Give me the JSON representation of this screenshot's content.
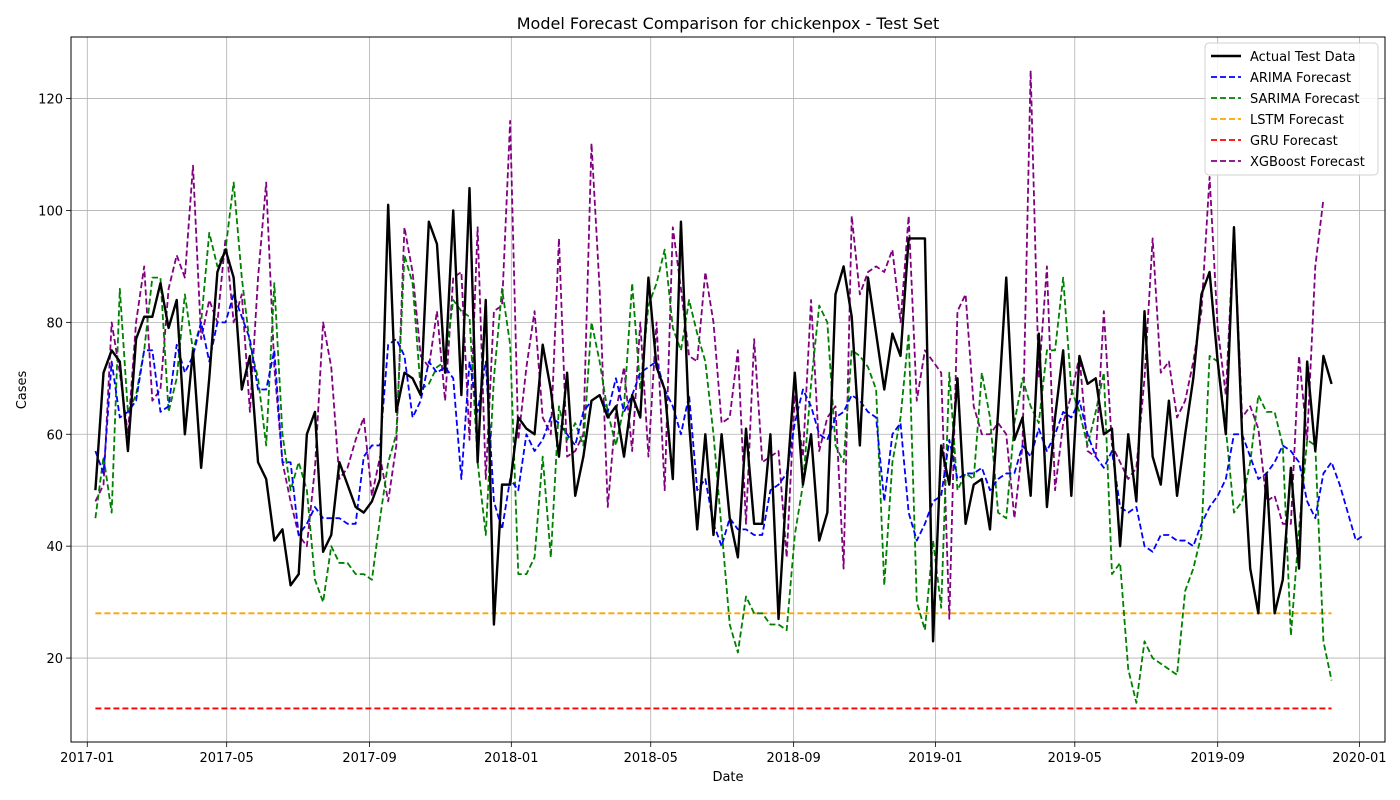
{
  "chart_data": {
    "type": "line",
    "title": "Model Forecast Comparison for chickenpox - Test Set",
    "xlabel": "Date",
    "ylabel": "Cases",
    "xlim": [
      "2016-12-18",
      "2020-01-23"
    ],
    "ylim": [
      5,
      131
    ],
    "x_ticks": [
      "2017-01",
      "2017-05",
      "2017-09",
      "2018-01",
      "2018-05",
      "2018-09",
      "2019-01",
      "2019-05",
      "2019-09",
      "2020-01"
    ],
    "y_ticks": [
      20,
      40,
      60,
      80,
      100,
      120
    ],
    "grid": true,
    "legend_position": "top-right",
    "start_date": "2017-01-08",
    "step": "weekly",
    "series": [
      {
        "name": "Actual Test Data",
        "color": "#000000",
        "dashed": false,
        "values": [
          50,
          71,
          75,
          73,
          57,
          77,
          81,
          81,
          87,
          79,
          84,
          60,
          75,
          54,
          70,
          89,
          93,
          88,
          68,
          74,
          55,
          52,
          41,
          43,
          33,
          35,
          60,
          64,
          39,
          42,
          55,
          51,
          47,
          46,
          48,
          52,
          101,
          64,
          71,
          70,
          67,
          98,
          94,
          71,
          100,
          67,
          104,
          55,
          84,
          26,
          51,
          51,
          63,
          61,
          60,
          76,
          68,
          56,
          71,
          49,
          56,
          66,
          67,
          63,
          65,
          56,
          67,
          63,
          88,
          72,
          68,
          52,
          98,
          62,
          43,
          60,
          42,
          60,
          45,
          38,
          61,
          44,
          44,
          60,
          27,
          51,
          71,
          51,
          60,
          41,
          46,
          85,
          90,
          81,
          58,
          88,
          78,
          68,
          78,
          74,
          95,
          95,
          95,
          23,
          58,
          51,
          70,
          44,
          51,
          52,
          43,
          64,
          88,
          59,
          63,
          49,
          78,
          47,
          63,
          75,
          49,
          74,
          69,
          70,
          60,
          61,
          40,
          60,
          48,
          82,
          56,
          51,
          66,
          49,
          60,
          70,
          85,
          89,
          73,
          60,
          97,
          60,
          36,
          28,
          53,
          28,
          34,
          54,
          36,
          73,
          57,
          74,
          69
        ]
      },
      {
        "name": "ARIMA Forecast",
        "color": "#0000ff",
        "dashed": true,
        "values": [
          57,
          53,
          73,
          63,
          64,
          66,
          75,
          75,
          64,
          65,
          76,
          71,
          74,
          80,
          73,
          80,
          80,
          85,
          81,
          77,
          68,
          68,
          75,
          55,
          55,
          42,
          44,
          47,
          45,
          45,
          45,
          44,
          44,
          56,
          58,
          58,
          76,
          77,
          74,
          63,
          66,
          73,
          71,
          72,
          70,
          52,
          73,
          64,
          73,
          48,
          43,
          52,
          50,
          60,
          57,
          59,
          63,
          62,
          60,
          58,
          64,
          66,
          67,
          64,
          70,
          64,
          67,
          71,
          72,
          73,
          68,
          65,
          60,
          67,
          50,
          52,
          44,
          40,
          45,
          43,
          43,
          42,
          42,
          50,
          51,
          53,
          62,
          68,
          65,
          60,
          59,
          63,
          64,
          67,
          66,
          64,
          63,
          48,
          60,
          62,
          46,
          41,
          44,
          48,
          49,
          59,
          52,
          53,
          53,
          54,
          50,
          52,
          53,
          53,
          58,
          56,
          61,
          57,
          60,
          64,
          63,
          66,
          60,
          56,
          54,
          57,
          47,
          46,
          47,
          40,
          39,
          42,
          42,
          41,
          41,
          40,
          44,
          47,
          49,
          52,
          60,
          60,
          56,
          52,
          53,
          55,
          58,
          57,
          55,
          48,
          45,
          53,
          55,
          51,
          46,
          41,
          42
        ]
      },
      {
        "name": "SARIMA Forecast",
        "color": "#008000",
        "dashed": true,
        "values": [
          45,
          56,
          46,
          86,
          64,
          67,
          75,
          88,
          88,
          64,
          70,
          85,
          75,
          80,
          96,
          90,
          93,
          105,
          88,
          76,
          70,
          58,
          87,
          60,
          50,
          55,
          50,
          34,
          30,
          40,
          37,
          37,
          35,
          35,
          34,
          45,
          55,
          60,
          92,
          87,
          68,
          69,
          72,
          73,
          84,
          82,
          81,
          55,
          42,
          70,
          86,
          76,
          35,
          35,
          38,
          56,
          38,
          65,
          59,
          62,
          58,
          80,
          73,
          64,
          58,
          65,
          87,
          68,
          83,
          87,
          93,
          79,
          75,
          84,
          78,
          73,
          60,
          43,
          26,
          21,
          31,
          28,
          28,
          26,
          26,
          25,
          42,
          51,
          69,
          83,
          80,
          58,
          55,
          75,
          74,
          72,
          68,
          33,
          55,
          63,
          78,
          30,
          25,
          41,
          29,
          71,
          50,
          53,
          52,
          71,
          63,
          46,
          45,
          62,
          70,
          65,
          62,
          75,
          75,
          88,
          68,
          64,
          58,
          64,
          71,
          35,
          37,
          18,
          12,
          23,
          20,
          19,
          18,
          17,
          32,
          36,
          42,
          74,
          73,
          61,
          46,
          48,
          55,
          67,
          64,
          64,
          58,
          24,
          43,
          59,
          58,
          23,
          16
        ]
      },
      {
        "name": "LSTM Forecast",
        "color": "#ffa500",
        "dashed": true,
        "constant": 28
      },
      {
        "name": "GRU Forecast",
        "color": "#ff0000",
        "dashed": true,
        "constant": 11
      },
      {
        "name": "XGBoost Forecast",
        "color": "#800080",
        "dashed": true,
        "values": [
          48,
          51,
          80,
          71,
          60,
          80,
          90,
          66,
          68,
          86,
          92,
          88,
          108,
          77,
          84,
          80,
          95,
          80,
          85,
          64,
          88,
          105,
          72,
          55,
          48,
          42,
          40,
          54,
          80,
          72,
          52,
          54,
          59,
          63,
          49,
          56,
          48,
          58,
          97,
          89,
          74,
          72,
          82,
          66,
          88,
          89,
          59,
          97,
          52,
          82,
          83,
          116,
          59,
          72,
          82,
          63,
          60,
          95,
          56,
          57,
          60,
          112,
          86,
          47,
          64,
          72,
          57,
          80,
          56,
          80,
          50,
          97,
          86,
          74,
          73,
          89,
          80,
          62,
          63,
          75,
          44,
          77,
          55,
          56,
          57,
          38,
          67,
          56,
          84,
          57,
          63,
          65,
          36,
          99,
          85,
          89,
          90,
          89,
          93,
          80,
          99,
          66,
          75,
          73,
          71,
          27,
          82,
          85,
          65,
          60,
          60,
          62,
          60,
          45,
          58,
          125,
          70,
          90,
          50,
          62,
          67,
          74,
          57,
          56,
          82,
          58,
          55,
          52,
          54,
          70,
          95,
          71,
          73,
          63,
          66,
          73,
          82,
          106,
          79,
          67,
          97,
          63,
          65,
          61,
          48,
          49,
          44,
          44,
          74,
          59,
          90,
          102
        ]
      }
    ]
  }
}
